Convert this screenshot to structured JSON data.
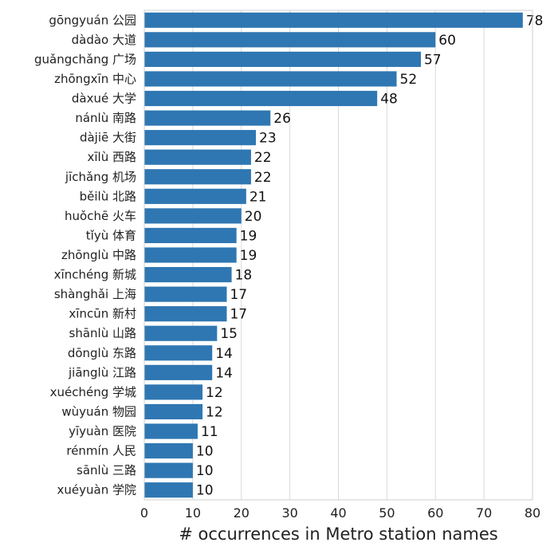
{
  "chart_data": {
    "type": "bar",
    "orientation": "horizontal",
    "categories": [
      "gōngyuán 公园",
      "dàdào 大道",
      "guǎngchǎng 广场",
      "zhōngxīn 中心",
      "dàxué 大学",
      "nánlù 南路",
      "dàjiē 大街",
      "xīlù 西路",
      "jīchǎng 机场",
      "běilù 北路",
      "huǒchē 火车",
      "tǐyù 体育",
      "zhōnglù 中路",
      "xīnchéng 新城",
      "shànghǎi 上海",
      "xīncūn 新村",
      "shānlù 山路",
      "dōnglù 东路",
      "jiānglù 江路",
      "xuéchéng 学城",
      "wùyuán 物园",
      "yīyuàn 医院",
      "rénmín 人民",
      "sānlù 三路",
      "xuéyuàn 学院"
    ],
    "values": [
      78,
      60,
      57,
      52,
      48,
      26,
      23,
      22,
      22,
      21,
      20,
      19,
      19,
      18,
      17,
      17,
      15,
      14,
      14,
      12,
      12,
      11,
      10,
      10,
      10
    ],
    "xlabel": "# occurrences in Metro station names",
    "ylabel": "",
    "xlim": [
      0,
      80
    ],
    "xticks": [
      0,
      10,
      20,
      30,
      40,
      50,
      60,
      70,
      80
    ],
    "grid": "vertical",
    "bar_color": "#2f77b2",
    "data_labels": true
  }
}
